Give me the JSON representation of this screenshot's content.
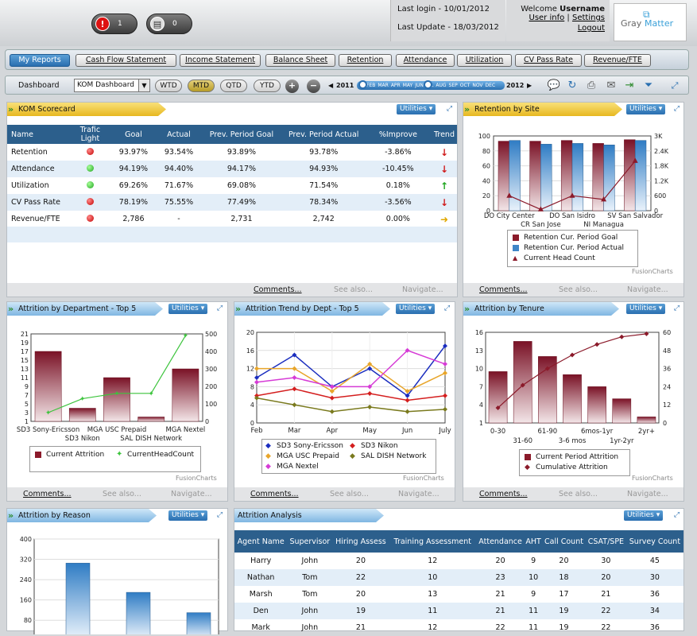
{
  "header": {
    "alert_red_count": "1",
    "alert_gray_count": "0",
    "last_login": "Last login - 10/01/2012",
    "last_update": "Last Update - 18/03/2012",
    "welcome": "Welcome",
    "username": "Username",
    "user_info": "User info",
    "sep": "|",
    "settings": "Settings",
    "logout": "Logout",
    "logo_left": "Gray",
    "logo_right": "Matter"
  },
  "tabs": [
    "My Reports",
    "Cash Flow Statement",
    "Income Statement",
    "Balance Sheet",
    "Retention",
    "Attendance",
    "Utilization",
    "CV Pass Rate",
    "Revenue/FTE"
  ],
  "toolbar": {
    "dashboard_label": "Dashboard",
    "dashboard_value": "KOM Dashboard",
    "wtd": "WTD",
    "mtd": "MTD",
    "qtd": "QTD",
    "ytd": "YTD",
    "plus": "+",
    "minus": "−",
    "year_start": "2011",
    "year_end": "2012",
    "months": [
      "FEB",
      "MAR",
      "APR",
      "MAY",
      "JUN",
      "JUL",
      "AUG",
      "SEP",
      "OCT",
      "NOV",
      "DEC"
    ]
  },
  "common": {
    "utilities": "Utilities ▾",
    "comments": "Comments...",
    "see_also": "See also...",
    "navigate": "Navigate...",
    "fusion": "FusionCharts"
  },
  "kom": {
    "title": "KOM Scorecard",
    "columns": [
      "Name",
      "Trafic Light",
      "Goal",
      "Actual",
      "Prev. Period Goal",
      "Prev. Period Actual",
      "%Improve",
      "Trend"
    ],
    "rows": [
      {
        "name": "Retention",
        "light": "red",
        "goal": "93.97%",
        "actual": "93.54%",
        "ppg": "93.89%",
        "ppa": "93.78%",
        "improve": "-3.86%",
        "trend": "down"
      },
      {
        "name": "Attendance",
        "light": "green",
        "goal": "94.19%",
        "actual": "94.40%",
        "ppg": "94.17%",
        "ppa": "94.93%",
        "improve": "-10.45%",
        "trend": "down"
      },
      {
        "name": "Utilization",
        "light": "green",
        "goal": "69.26%",
        "actual": "71.67%",
        "ppg": "69.08%",
        "ppa": "71.54%",
        "improve": "0.18%",
        "trend": "up"
      },
      {
        "name": "CV Pass Rate",
        "light": "red",
        "goal": "78.19%",
        "actual": "75.55%",
        "ppg": "77.49%",
        "ppa": "78.34%",
        "improve": "-3.56%",
        "trend": "down"
      },
      {
        "name": "Revenue/FTE",
        "light": "red",
        "goal": "2,786",
        "actual": "-",
        "ppg": "2,731",
        "ppa": "2,742",
        "improve": "0.00%",
        "trend": "right"
      }
    ]
  },
  "chart_data": [
    {
      "id": "retention",
      "type": "bar",
      "title": "Retention by Site",
      "categories": [
        "DO City Center",
        "CR San Jose",
        "DO San Isidro",
        "NI Managua",
        "SV San Salvador"
      ],
      "ylim": [
        0,
        100
      ],
      "yticks": [
        "0",
        "20",
        "40",
        "60",
        "80",
        "100"
      ],
      "y2ticks": [
        "0",
        "600",
        "1.2K",
        "1.8K",
        "2.4K",
        "3K"
      ],
      "series": [
        {
          "name": "Retention Cur. Period Goal",
          "values": [
            93,
            93,
            94,
            90,
            95
          ],
          "color": "#8b1a2a"
        },
        {
          "name": "Retention Cur. Period Actual",
          "values": [
            94,
            89,
            90,
            88,
            94
          ],
          "color": "#3f86c7"
        },
        {
          "name": "Current Head Count",
          "values": [
            600,
            50,
            600,
            450,
            2000
          ],
          "axis": "secondary",
          "color": "#8b1a2a"
        }
      ]
    },
    {
      "id": "dept",
      "type": "bar",
      "title": "Attrition by Department - Top 5",
      "categories": [
        "SD3 Sony-Ericsson",
        "SD3 Nikon",
        "MGA USC Prepaid",
        "SAL DISH Network",
        "MGA Nextel"
      ],
      "yticks": [
        "1",
        "3",
        "5",
        "7",
        "9",
        "11",
        "13",
        "15",
        "17",
        "19",
        "21"
      ],
      "y2ticks": [
        "0",
        "100",
        "200",
        "300",
        "400",
        "500"
      ],
      "series": [
        {
          "name": "Current Attrition",
          "values": [
            17,
            4,
            11,
            2,
            13
          ],
          "color": "#8b1a2a"
        },
        {
          "name": "CurrentHeadCount",
          "values": [
            50,
            130,
            160,
            160,
            490
          ],
          "axis": "secondary",
          "color": "#3cc43c"
        }
      ]
    },
    {
      "id": "trend",
      "type": "line",
      "title": "Attrition Trend by Dept - Top 5",
      "categories": [
        "Feb",
        "Mar",
        "Apr",
        "May",
        "Jun",
        "July"
      ],
      "ylim": [
        0,
        20
      ],
      "yticks": [
        "0",
        "4",
        "8",
        "12",
        "16",
        "20"
      ],
      "series": [
        {
          "name": "SD3 Sony-Ericsson",
          "values": [
            10,
            15,
            8,
            12,
            6,
            17
          ],
          "color": "#1a2dbf"
        },
        {
          "name": "SD3 Nikon",
          "values": [
            6,
            7.5,
            5.5,
            6.5,
            5,
            6
          ],
          "color": "#d41e1e"
        },
        {
          "name": "MGA USC Prepaid",
          "values": [
            12,
            12,
            7,
            13,
            7,
            11
          ],
          "color": "#e8a52a"
        },
        {
          "name": "SAL DISH Network",
          "values": [
            5.5,
            4,
            2.5,
            3.5,
            2.5,
            3
          ],
          "color": "#7a7a1e"
        },
        {
          "name": "MGA Nextel",
          "values": [
            9,
            10,
            8,
            8,
            16,
            13
          ],
          "color": "#d63bd6"
        }
      ]
    },
    {
      "id": "tenure",
      "type": "bar",
      "title": "Attrition by Tenure",
      "categories": [
        "0-30",
        "31-60",
        "61-90",
        "3-6 mos",
        "6mos-1yr",
        "1yr-2yr",
        "2yr+"
      ],
      "yticks": [
        "1",
        "4",
        "7",
        "10",
        "13",
        "16"
      ],
      "y2ticks": [
        "0",
        "12",
        "24",
        "36",
        "48",
        "60"
      ],
      "series": [
        {
          "name": "Current Period Attrition",
          "values": [
            9.5,
            14.5,
            12,
            9,
            7,
            5,
            2
          ],
          "color": "#8b1a2a"
        },
        {
          "name": "Cumulative Attrition",
          "values": [
            10,
            25,
            36,
            45,
            52,
            57,
            59
          ],
          "axis": "secondary",
          "color": "#8b1a2a"
        }
      ]
    },
    {
      "id": "reason",
      "type": "bar",
      "title": "Attrition by Reason",
      "yticks": [
        "80",
        "160",
        "240",
        "320",
        "400"
      ],
      "ylim": [
        40,
        400
      ],
      "values": [
        305,
        190,
        110
      ]
    }
  ],
  "analysis": {
    "title": "Attrition Analysis",
    "columns": [
      "Agent Name",
      "Supervisor",
      "Hiring Assess",
      "Training Assessment",
      "Attendance",
      "AHT",
      "Call Count",
      "CSAT/SPE",
      "Survey Count"
    ],
    "rows": [
      [
        "Harry",
        "John",
        "20",
        "12",
        "20",
        "9",
        "20",
        "30",
        "45"
      ],
      [
        "Nathan",
        "Tom",
        "22",
        "10",
        "23",
        "10",
        "18",
        "20",
        "30"
      ],
      [
        "Marsh",
        "Tom",
        "20",
        "13",
        "21",
        "9",
        "17",
        "21",
        "36"
      ],
      [
        "Den",
        "John",
        "19",
        "11",
        "21",
        "11",
        "19",
        "22",
        "34"
      ],
      [
        "Mark",
        "John",
        "21",
        "12",
        "22",
        "11",
        "19",
        "22",
        "36"
      ]
    ]
  }
}
